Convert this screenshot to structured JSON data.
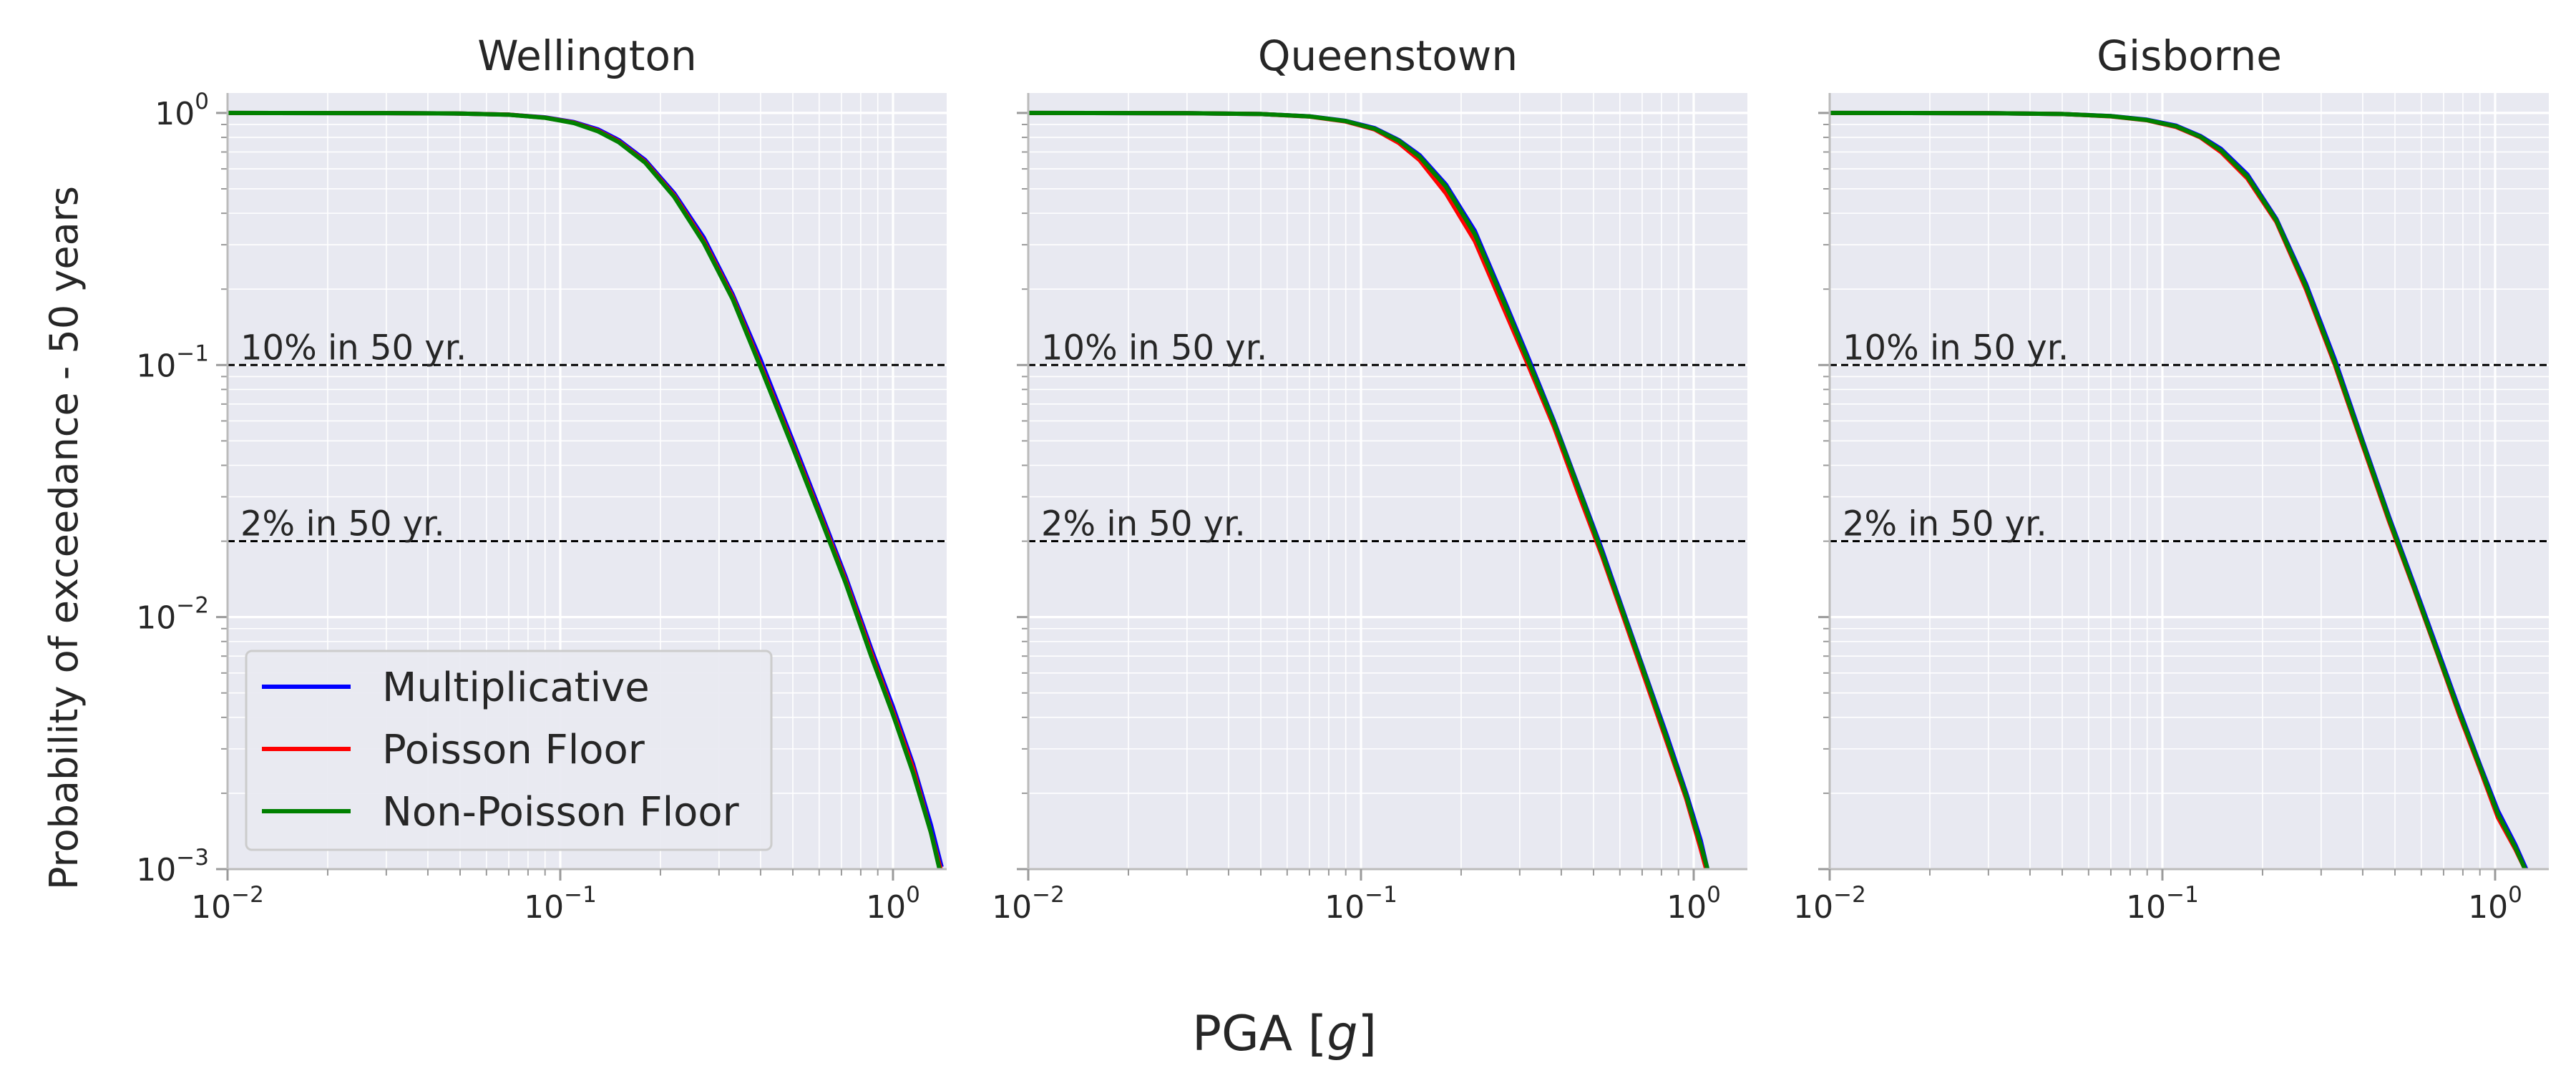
{
  "figure": {
    "shared_xlabel_prefix": "PGA [",
    "shared_xlabel_italic": "g",
    "shared_xlabel_suffix": "]",
    "shared_ylabel": "Probability of exceedance - 50 years"
  },
  "colors": {
    "Multiplicative": "#0000ff",
    "Poisson Floor": "#ff0000",
    "Non-Poisson Floor": "#008000",
    "plot_background": "#e8e9f1",
    "grid": "#ffffff",
    "reference_line": "#000000"
  },
  "legend": {
    "placement": "lower-left of first panel",
    "entries": [
      "Multiplicative",
      "Poisson Floor",
      "Non-Poisson Floor"
    ]
  },
  "chart_data": [
    {
      "type": "line",
      "title": "Wellington",
      "x_scale": "log",
      "y_scale": "log",
      "xlim": [
        0.01,
        1.45
      ],
      "ylim": [
        0.001,
        1.2
      ],
      "grid": true,
      "x_ticks": [
        {
          "base": "10",
          "exp": "−2",
          "value": 0.01
        },
        {
          "base": "10",
          "exp": "−1",
          "value": 0.1
        },
        {
          "base": "10",
          "exp": "0",
          "value": 1
        }
      ],
      "y_ticks": [
        {
          "base": "10",
          "exp": "0",
          "value": 1
        },
        {
          "base": "10",
          "exp": "−1",
          "value": 0.1
        },
        {
          "base": "10",
          "exp": "−2",
          "value": 0.01
        },
        {
          "base": "10",
          "exp": "−3",
          "value": 0.001
        }
      ],
      "reference_lines": [
        {
          "y": 0.1,
          "label": "10% in 50 yr."
        },
        {
          "y": 0.02,
          "label": "2% in 50 yr."
        }
      ],
      "series": [
        {
          "name": "Multiplicative",
          "x": [
            0.01,
            0.03,
            0.05,
            0.07,
            0.09,
            0.11,
            0.13,
            0.15,
            0.18,
            0.22,
            0.27,
            0.33,
            0.4,
            0.5,
            0.6,
            0.72,
            0.86,
            1.0,
            1.15,
            1.3,
            1.4
          ],
          "y": [
            1.0,
            0.999,
            0.995,
            0.985,
            0.96,
            0.92,
            0.86,
            0.78,
            0.65,
            0.48,
            0.32,
            0.19,
            0.105,
            0.05,
            0.027,
            0.0145,
            0.0075,
            0.0044,
            0.0026,
            0.0015,
            0.00102
          ]
        },
        {
          "name": "Poisson Floor",
          "x": [
            0.01,
            0.03,
            0.05,
            0.07,
            0.09,
            0.11,
            0.13,
            0.15,
            0.18,
            0.22,
            0.27,
            0.33,
            0.4,
            0.5,
            0.6,
            0.72,
            0.86,
            1.0,
            1.15,
            1.3,
            1.39
          ],
          "y": [
            1.0,
            0.999,
            0.995,
            0.985,
            0.958,
            0.915,
            0.85,
            0.77,
            0.64,
            0.47,
            0.31,
            0.185,
            0.1,
            0.048,
            0.026,
            0.014,
            0.0072,
            0.0042,
            0.0025,
            0.0014,
            0.001
          ]
        },
        {
          "name": "Non-Poisson Floor",
          "x": [
            0.01,
            0.03,
            0.05,
            0.07,
            0.09,
            0.11,
            0.13,
            0.15,
            0.18,
            0.22,
            0.27,
            0.33,
            0.4,
            0.5,
            0.6,
            0.72,
            0.86,
            1.0,
            1.15,
            1.3,
            1.38
          ],
          "y": [
            1.0,
            0.999,
            0.995,
            0.984,
            0.957,
            0.912,
            0.845,
            0.765,
            0.635,
            0.465,
            0.305,
            0.182,
            0.098,
            0.047,
            0.0255,
            0.0137,
            0.007,
            0.0041,
            0.0024,
            0.0014,
            0.001
          ]
        }
      ]
    },
    {
      "type": "line",
      "title": "Queenstown",
      "x_scale": "log",
      "y_scale": "log",
      "xlim": [
        0.01,
        1.45
      ],
      "ylim": [
        0.001,
        1.2
      ],
      "grid": true,
      "x_ticks": [
        {
          "base": "10",
          "exp": "−2",
          "value": 0.01
        },
        {
          "base": "10",
          "exp": "−1",
          "value": 0.1
        },
        {
          "base": "10",
          "exp": "0",
          "value": 1
        }
      ],
      "y_ticks": [],
      "reference_lines": [
        {
          "y": 0.1,
          "label": "10% in 50 yr."
        },
        {
          "y": 0.02,
          "label": "2% in 50 yr."
        }
      ],
      "series": [
        {
          "name": "Multiplicative",
          "x": [
            0.01,
            0.03,
            0.05,
            0.07,
            0.09,
            0.11,
            0.13,
            0.15,
            0.18,
            0.22,
            0.27,
            0.32,
            0.38,
            0.45,
            0.53,
            0.62,
            0.72,
            0.83,
            0.95,
            1.05,
            1.1
          ],
          "y": [
            1.0,
            0.998,
            0.99,
            0.97,
            0.93,
            0.87,
            0.78,
            0.68,
            0.52,
            0.34,
            0.18,
            0.105,
            0.06,
            0.033,
            0.0185,
            0.0102,
            0.0058,
            0.0034,
            0.002,
            0.0013,
            0.001
          ]
        },
        {
          "name": "Poisson Floor",
          "x": [
            0.01,
            0.03,
            0.05,
            0.07,
            0.09,
            0.11,
            0.13,
            0.15,
            0.18,
            0.22,
            0.27,
            0.32,
            0.38,
            0.45,
            0.53,
            0.62,
            0.72,
            0.83,
            0.95,
            1.05,
            1.09
          ],
          "y": [
            1.0,
            0.998,
            0.99,
            0.968,
            0.925,
            0.86,
            0.76,
            0.65,
            0.48,
            0.31,
            0.165,
            0.098,
            0.057,
            0.031,
            0.0175,
            0.0097,
            0.0055,
            0.0032,
            0.0019,
            0.0012,
            0.001
          ]
        },
        {
          "name": "Non-Poisson Floor",
          "x": [
            0.01,
            0.03,
            0.05,
            0.07,
            0.09,
            0.11,
            0.13,
            0.15,
            0.18,
            0.22,
            0.27,
            0.32,
            0.38,
            0.45,
            0.53,
            0.62,
            0.72,
            0.83,
            0.95,
            1.05,
            1.1
          ],
          "y": [
            1.0,
            0.998,
            0.99,
            0.969,
            0.928,
            0.865,
            0.775,
            0.67,
            0.51,
            0.33,
            0.175,
            0.102,
            0.059,
            0.0325,
            0.018,
            0.01,
            0.0057,
            0.0033,
            0.00195,
            0.00125,
            0.001
          ]
        }
      ]
    },
    {
      "type": "line",
      "title": "Gisborne",
      "x_scale": "log",
      "y_scale": "log",
      "xlim": [
        0.01,
        1.45
      ],
      "ylim": [
        0.001,
        1.2
      ],
      "grid": true,
      "x_ticks": [
        {
          "base": "10",
          "exp": "−2",
          "value": 0.01
        },
        {
          "base": "10",
          "exp": "−1",
          "value": 0.1
        },
        {
          "base": "10",
          "exp": "0",
          "value": 1
        }
      ],
      "y_ticks": [],
      "reference_lines": [
        {
          "y": 0.1,
          "label": "10% in 50 yr."
        },
        {
          "y": 0.02,
          "label": "2% in 50 yr."
        }
      ],
      "series": [
        {
          "name": "Multiplicative",
          "x": [
            0.01,
            0.03,
            0.05,
            0.07,
            0.09,
            0.11,
            0.13,
            0.15,
            0.18,
            0.22,
            0.27,
            0.33,
            0.4,
            0.48,
            0.57,
            0.67,
            0.78,
            0.9,
            1.02,
            1.15,
            1.24
          ],
          "y": [
            1.0,
            0.998,
            0.99,
            0.972,
            0.94,
            0.89,
            0.81,
            0.72,
            0.57,
            0.38,
            0.21,
            0.105,
            0.05,
            0.025,
            0.0135,
            0.0075,
            0.0043,
            0.0026,
            0.0017,
            0.00125,
            0.001
          ]
        },
        {
          "name": "Poisson Floor",
          "x": [
            0.01,
            0.03,
            0.05,
            0.07,
            0.09,
            0.11,
            0.13,
            0.15,
            0.18,
            0.22,
            0.27,
            0.33,
            0.4,
            0.48,
            0.57,
            0.67,
            0.78,
            0.9,
            1.02,
            1.15,
            1.23
          ],
          "y": [
            1.0,
            0.998,
            0.99,
            0.97,
            0.935,
            0.88,
            0.8,
            0.7,
            0.55,
            0.37,
            0.2,
            0.1,
            0.048,
            0.024,
            0.013,
            0.0072,
            0.0041,
            0.0025,
            0.0016,
            0.0012,
            0.001
          ]
        },
        {
          "name": "Non-Poisson Floor",
          "x": [
            0.01,
            0.03,
            0.05,
            0.07,
            0.09,
            0.11,
            0.13,
            0.15,
            0.18,
            0.22,
            0.27,
            0.33,
            0.4,
            0.48,
            0.57,
            0.67,
            0.78,
            0.9,
            1.02,
            1.15,
            1.23
          ],
          "y": [
            1.0,
            0.998,
            0.99,
            0.971,
            0.937,
            0.885,
            0.805,
            0.71,
            0.56,
            0.375,
            0.205,
            0.102,
            0.049,
            0.0245,
            0.0132,
            0.0073,
            0.0042,
            0.00255,
            0.00165,
            0.00122,
            0.001
          ]
        }
      ]
    }
  ]
}
